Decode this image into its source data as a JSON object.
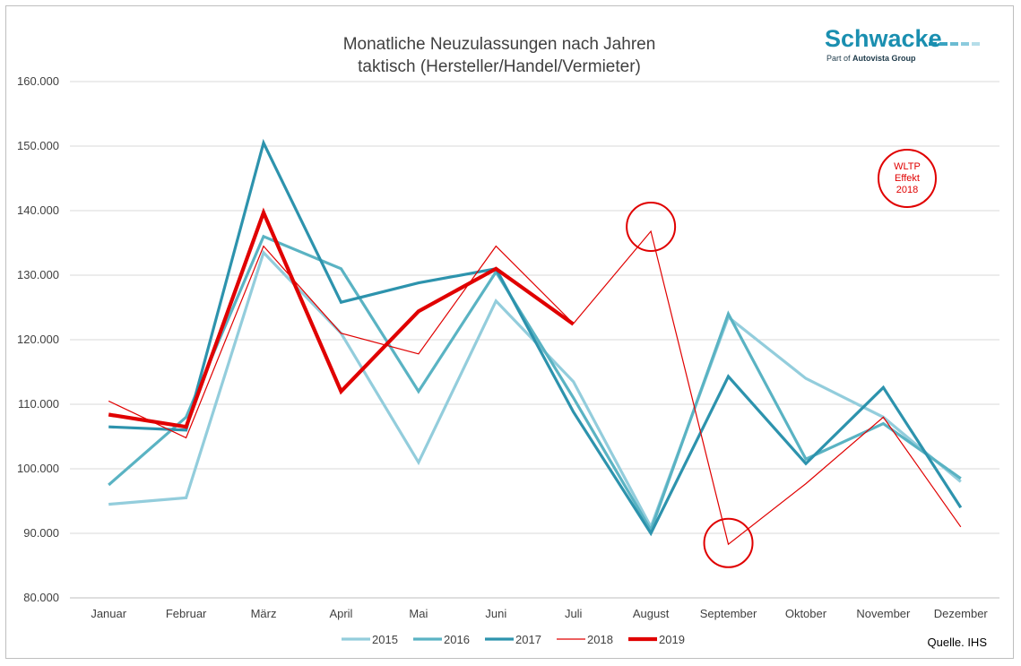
{
  "chart_data": {
    "type": "line",
    "title_lines": [
      "Monatliche Neuzulassungen nach Jahren",
      "taktisch (Hersteller/Handel/Vermieter)"
    ],
    "xlabel": "",
    "ylabel": "",
    "ylim": [
      80000,
      160000
    ],
    "y_ticks": [
      80000,
      90000,
      100000,
      110000,
      120000,
      130000,
      140000,
      150000,
      160000
    ],
    "y_tick_labels": [
      "80.000",
      "90.000",
      "100.000",
      "110.000",
      "120.000",
      "130.000",
      "140.000",
      "150.000",
      "160.000"
    ],
    "grid": true,
    "legend_position": "bottom",
    "categories": [
      "Januar",
      "Februar",
      "März",
      "April",
      "Mai",
      "Juni",
      "Juli",
      "August",
      "September",
      "Oktober",
      "November",
      "Dezember"
    ],
    "series": [
      {
        "name": "2015",
        "color": "#93cddc",
        "line_weight": "medium",
        "values": [
          94500,
          95500,
          133500,
          121000,
          101000,
          126000,
          113500,
          91000,
          123500,
          114000,
          108000,
          98000
        ]
      },
      {
        "name": "2016",
        "color": "#5ab3c3",
        "line_weight": "medium",
        "values": [
          97500,
          108000,
          136000,
          131000,
          112000,
          130500,
          111000,
          90500,
          124000,
          101500,
          107000,
          98500
        ]
      },
      {
        "name": "2017",
        "color": "#2d93ad",
        "line_weight": "medium",
        "values": [
          106500,
          106000,
          150500,
          125800,
          128800,
          131000,
          108800,
          90000,
          114300,
          100800,
          112600,
          94000
        ]
      },
      {
        "name": "2018",
        "color": "#e00000",
        "line_weight": "thin",
        "values": [
          110500,
          104800,
          134500,
          121000,
          117800,
          134500,
          122500,
          136800,
          88300,
          97700,
          108000,
          91000
        ]
      },
      {
        "name": "2019",
        "color": "#e00000",
        "line_weight": "bold",
        "values": [
          108400,
          106500,
          139700,
          112000,
          124400,
          131000,
          122400,
          null,
          null,
          null,
          null,
          null
        ]
      }
    ],
    "annotations": [
      {
        "type": "circle",
        "category": "August",
        "value": 137500,
        "color": "#e00000"
      },
      {
        "type": "circle",
        "category": "September",
        "value": 88500,
        "color": "#e00000"
      },
      {
        "type": "circle-text",
        "lines": [
          "WLTP",
          "Effekt",
          "2018"
        ],
        "position": "top-right",
        "color": "#e00000"
      }
    ],
    "source": "Quelle. IHS"
  },
  "logo": {
    "name": "Schwacke",
    "sub_prefix": "Part of",
    "sub_brand": "Autovista Group",
    "color_primary": "#1a8fb0",
    "color_light": "#9dd4e3"
  }
}
